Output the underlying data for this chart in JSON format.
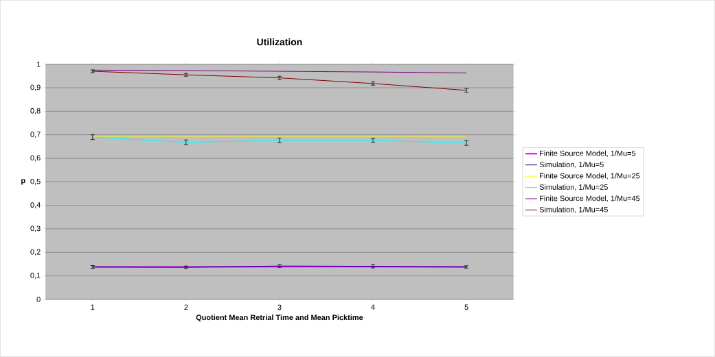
{
  "chart_data": {
    "type": "line",
    "title": "Utilization",
    "xlabel": "Quotient Mean Retrial Time and Mean Picktime",
    "ylabel": "p",
    "categories": [
      "1",
      "2",
      "3",
      "4",
      "5"
    ],
    "series": [
      {
        "name": "Finite Source Model, 1/Mu=5",
        "color": "#ff00ff",
        "values": [
          0.138,
          0.138,
          0.139,
          0.139,
          0.138
        ]
      },
      {
        "name": "Simulation, 1/Mu=5",
        "color": "#000080",
        "values": [
          0.138,
          0.137,
          0.142,
          0.141,
          0.138
        ],
        "errors": [
          0.006,
          0.005,
          0.006,
          0.007,
          0.005
        ]
      },
      {
        "name": "Finite Source Model, 1/Mu=25",
        "color": "#ffff00",
        "values": [
          0.694,
          0.694,
          0.694,
          0.694,
          0.694
        ]
      },
      {
        "name": "Simulation, 1/Mu=25",
        "color": "#00ffff",
        "values": [
          0.69,
          0.668,
          0.676,
          0.676,
          0.665
        ],
        "errors": [
          0.01,
          0.01,
          0.01,
          0.008,
          0.01
        ]
      },
      {
        "name": "Finite Source Model, 1/Mu=45",
        "color": "#800080",
        "values": [
          0.975,
          0.973,
          0.97,
          0.967,
          0.963
        ]
      },
      {
        "name": "Simulation, 1/Mu=45",
        "color": "#800000",
        "values": [
          0.97,
          0.955,
          0.942,
          0.918,
          0.889
        ],
        "errors": [
          0.006,
          0.006,
          0.007,
          0.007,
          0.008
        ]
      }
    ],
    "ylim": [
      0,
      1
    ],
    "yticks": [
      {
        "value": 0,
        "label": "0"
      },
      {
        "value": 0.1,
        "label": "0,1"
      },
      {
        "value": 0.2,
        "label": "0,2"
      },
      {
        "value": 0.3,
        "label": "0,3"
      },
      {
        "value": 0.4,
        "label": "0,4"
      },
      {
        "value": 0.5,
        "label": "0,5"
      },
      {
        "value": 0.6,
        "label": "0,6"
      },
      {
        "value": 0.7,
        "label": "0,7"
      },
      {
        "value": 0.8,
        "label": "0,8"
      },
      {
        "value": 0.9,
        "label": "0,9"
      },
      {
        "value": 1,
        "label": "1"
      }
    ],
    "grid": "y",
    "legend": "right",
    "marker": "none",
    "line_style": "solid"
  }
}
